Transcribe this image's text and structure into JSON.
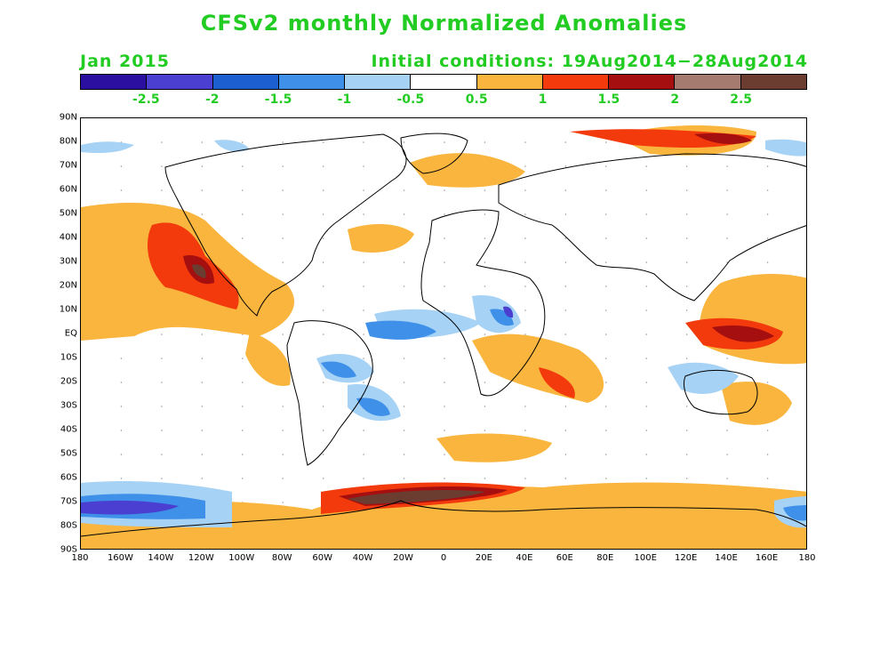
{
  "title": "CFSv2 monthly Normalized Anomalies",
  "month": "Jan 2015",
  "initial_conditions": "Initial conditions: 19Aug2014−28Aug2014",
  "colors": {
    "text_green": "#22cc22",
    "ocean": "#ffffff",
    "coast": "#000000",
    "scale": [
      "#2a0fa0",
      "#4a3fd0",
      "#1c5fd0",
      "#3f90e8",
      "#a6d2f5",
      "#ffffff",
      "#f9b53d",
      "#f23a0c",
      "#a50f0f",
      "#a57a6f",
      "#6b3c30"
    ]
  },
  "colorbar_labels": [
    "-2.5",
    "-2",
    "-1.5",
    "-1",
    "-0.5",
    "0.5",
    "1",
    "1.5",
    "2",
    "2.5"
  ],
  "lat_labels": [
    "90N",
    "80N",
    "70N",
    "60N",
    "50N",
    "40N",
    "30N",
    "20N",
    "10N",
    "EQ",
    "10S",
    "20S",
    "30S",
    "40S",
    "50S",
    "60S",
    "70S",
    "80S",
    "90S"
  ],
  "lon_labels": [
    "180",
    "160W",
    "140W",
    "120W",
    "100W",
    "80W",
    "60W",
    "40W",
    "20W",
    "0",
    "20E",
    "40E",
    "60E",
    "80E",
    "100E",
    "120E",
    "140E",
    "160E",
    "180"
  ]
}
